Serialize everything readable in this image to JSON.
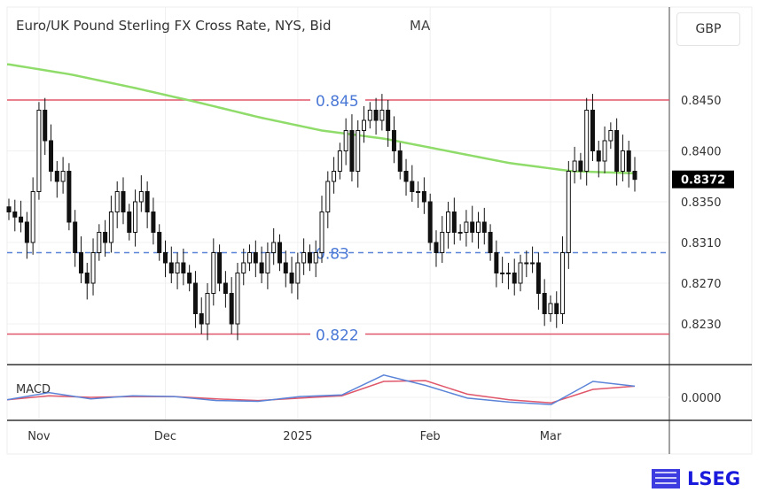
{
  "chart_data": {
    "type": "candlestick",
    "title": "Euro/UK Pound Sterling FX Cross Rate, NYS, Bid",
    "indicator_label": "MA",
    "currency": "GBP",
    "last_price": "0.8372",
    "ylim": [
      0.8205,
      0.851
    ],
    "yticks": [
      "0.8450",
      "0.8400",
      "0.8350",
      "0.8310",
      "0.8270",
      "0.8230"
    ],
    "xticks": [
      {
        "label": "Nov",
        "bar": 5
      },
      {
        "label": "Dec",
        "bar": 26
      },
      {
        "label": "2025",
        "bar": 48
      },
      {
        "label": "Feb",
        "bar": 70
      },
      {
        "label": "Mar",
        "bar": 90
      }
    ],
    "hlines": [
      {
        "value": 0.845,
        "label": "0.845",
        "style": "solid",
        "color": "#e0566a"
      },
      {
        "value": 0.83,
        "label": "0.83",
        "style": "dashed",
        "color": "#5b84d8"
      },
      {
        "value": 0.822,
        "label": "0.822",
        "style": "solid",
        "color": "#e0566a"
      }
    ],
    "closes": [
      0.834,
      0.8335,
      0.833,
      0.831,
      0.836,
      0.844,
      0.841,
      0.838,
      0.837,
      0.838,
      0.833,
      0.83,
      0.828,
      0.827,
      0.83,
      0.832,
      0.831,
      0.834,
      0.836,
      0.834,
      0.832,
      0.835,
      0.836,
      0.834,
      0.832,
      0.83,
      0.829,
      0.828,
      0.829,
      0.828,
      0.827,
      0.824,
      0.823,
      0.826,
      0.83,
      0.827,
      0.826,
      0.823,
      0.828,
      0.829,
      0.83,
      0.829,
      0.828,
      0.83,
      0.831,
      0.829,
      0.828,
      0.827,
      0.829,
      0.83,
      0.829,
      0.83,
      0.834,
      0.837,
      0.838,
      0.84,
      0.842,
      0.838,
      0.842,
      0.843,
      0.844,
      0.843,
      0.844,
      0.842,
      0.84,
      0.838,
      0.837,
      0.836,
      0.836,
      0.835,
      0.831,
      0.83,
      0.832,
      0.834,
      0.832,
      0.832,
      0.833,
      0.832,
      0.833,
      0.832,
      0.83,
      0.828,
      0.828,
      0.828,
      0.827,
      0.829,
      0.829,
      0.829,
      0.826,
      0.824,
      0.825,
      0.824,
      0.83,
      0.838,
      0.839,
      0.838,
      0.844,
      0.84,
      0.839,
      0.841,
      0.842,
      0.838,
      0.84,
      0.838,
      0.8372
    ],
    "ma": [
      0.8485,
      0.8475,
      0.8462,
      0.8448,
      0.8433,
      0.842,
      0.8412,
      0.84,
      0.8388,
      0.838,
      0.8378
    ],
    "macd_label": "MACD",
    "macd_ytick": "0.0000",
    "macd": [
      -0.3,
      0.6,
      -0.2,
      0.2,
      0.1,
      -0.4,
      -0.5,
      0.1,
      0.3,
      2.8,
      1.5,
      -0.1,
      -0.6,
      -0.9,
      2.0,
      1.4
    ],
    "signal": [
      -0.3,
      0.2,
      0.0,
      0.1,
      0.1,
      -0.2,
      -0.4,
      -0.1,
      0.2,
      2.0,
      2.1,
      0.4,
      -0.3,
      -0.7,
      1.0,
      1.4
    ]
  },
  "branding": {
    "logo": "LSEG"
  }
}
